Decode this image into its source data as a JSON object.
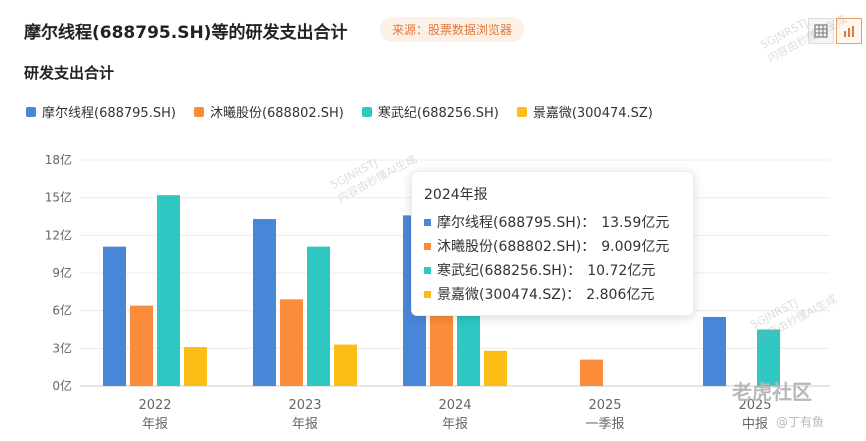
{
  "header": {
    "title": "摩尔线程(688795.SH)等的研发支出合计",
    "source": "来源：股票数据浏览器",
    "subtitle": "研发支出合计"
  },
  "toolbar": {
    "table_icon": "table-icon",
    "chart_icon": "bar-chart-icon"
  },
  "colors": {
    "s0": "#4a86d8",
    "s1": "#fb8c3c",
    "s2": "#2ec7c1",
    "s3": "#fbbd16"
  },
  "chart_data": {
    "type": "bar",
    "title": "研发支出合计",
    "categories": [
      [
        "2022",
        "年报"
      ],
      [
        "2023",
        "年报"
      ],
      [
        "2024",
        "年报"
      ],
      [
        "2025",
        "一季报"
      ],
      [
        "2025",
        "中报"
      ]
    ],
    "y_ticks": [
      "0亿",
      "3亿",
      "6亿",
      "9亿",
      "12亿",
      "15亿",
      "18亿"
    ],
    "ylim": [
      0,
      18
    ],
    "series": [
      {
        "name": "摩尔线程(688795.SH)",
        "values": [
          11.1,
          13.3,
          13.59,
          null,
          5.5
        ]
      },
      {
        "name": "沐曦股份(688802.SH)",
        "values": [
          6.4,
          6.9,
          9.009,
          2.1,
          null
        ]
      },
      {
        "name": "寒武纪(688256.SH)",
        "values": [
          15.2,
          11.1,
          10.72,
          null,
          4.5
        ]
      },
      {
        "name": "景嘉微(300474.SZ)",
        "values": [
          3.1,
          3.3,
          2.806,
          null,
          null
        ]
      }
    ],
    "grid": true,
    "legend": "top-left"
  },
  "tooltip": {
    "title": "2024年报",
    "rows": [
      {
        "label": "摩尔线程(688795.SH)：",
        "value": "13.59亿元"
      },
      {
        "label": "沐曦股份(688802.SH)：",
        "value": "9.009亿元"
      },
      {
        "label": "寒武纪(688256.SH)：",
        "value": "10.72亿元"
      },
      {
        "label": "景嘉微(300474.SZ)：",
        "value": "2.806亿元"
      }
    ]
  },
  "watermark": {
    "code": "5GJNRSTJ",
    "text": "内容由秒懂AI生成"
  },
  "footer": {
    "logo": "老虎社区",
    "author": "@丁有鱼"
  }
}
